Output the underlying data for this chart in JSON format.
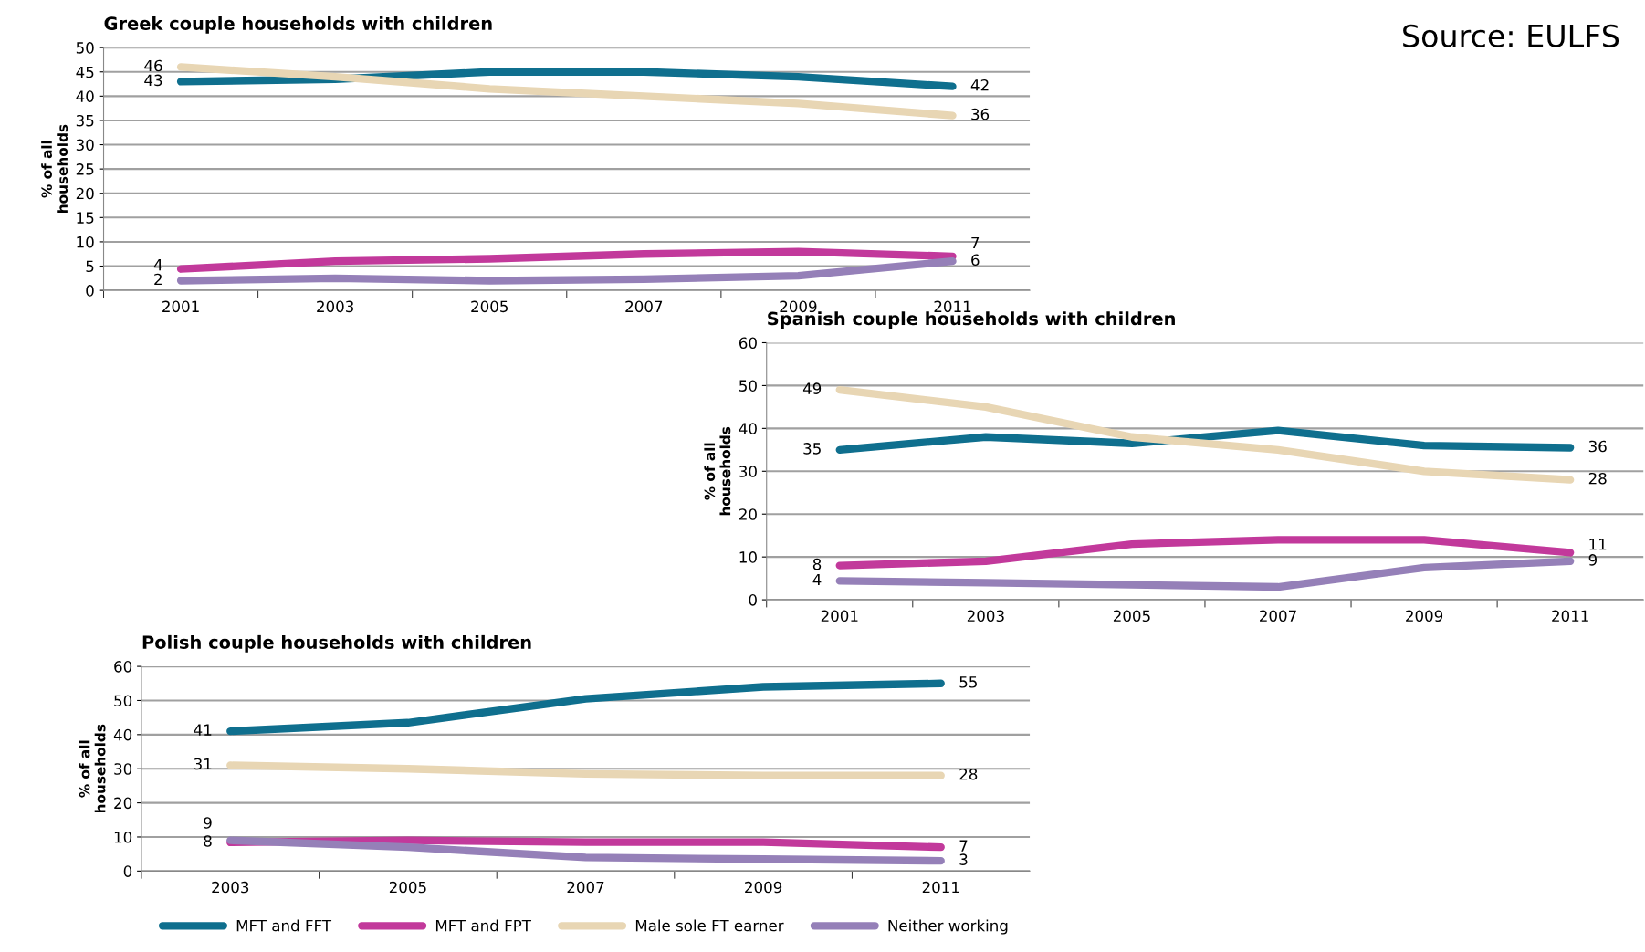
{
  "chart_data": [
    {
      "type": "line",
      "title": "Greek couple households with children",
      "ylabel": "% of all\nhouseholds",
      "categories": [
        "2001",
        "2003",
        "2005",
        "2007",
        "2009",
        "2011"
      ],
      "ylim": [
        0,
        50
      ],
      "yticks": [
        0,
        5,
        10,
        15,
        20,
        25,
        30,
        35,
        40,
        45,
        50
      ],
      "grid": "y",
      "marker": "none",
      "line_style": "solid",
      "annotations": [
        "Source: EULFS"
      ],
      "series": [
        {
          "color": "#0f6f8e",
          "values": [
            43,
            43.5,
            45,
            45,
            44,
            42
          ],
          "value_labels": [
            "43",
            null,
            null,
            null,
            null,
            "42"
          ]
        },
        {
          "color": "#c2399b",
          "values": [
            4.4,
            6,
            6.5,
            7.5,
            8,
            7
          ],
          "value_labels": [
            "4",
            null,
            null,
            null,
            null,
            "7"
          ]
        },
        {
          "color": "#e8d6b4",
          "values": [
            46,
            44,
            41.5,
            40,
            38.5,
            36
          ],
          "value_labels": [
            "46",
            null,
            null,
            null,
            null,
            "36"
          ]
        },
        {
          "color": "#9580b8",
          "values": [
            2,
            2.5,
            2,
            2.3,
            3,
            6
          ],
          "value_labels": [
            "2",
            null,
            null,
            null,
            null,
            "6"
          ]
        }
      ]
    },
    {
      "type": "line",
      "title": "Spanish couple households with children",
      "ylabel": "% of all\nhouseholds",
      "categories": [
        "2001",
        "2003",
        "2005",
        "2007",
        "2009",
        "2011"
      ],
      "ylim": [
        0,
        60
      ],
      "yticks": [
        0,
        10,
        20,
        30,
        40,
        50,
        60
      ],
      "grid": "y",
      "marker": "none",
      "line_style": "solid",
      "series": [
        {
          "color": "#0f6f8e",
          "values": [
            35,
            38,
            36.5,
            39.5,
            36,
            35.5
          ],
          "value_labels": [
            "35",
            null,
            null,
            null,
            null,
            "36"
          ]
        },
        {
          "color": "#c2399b",
          "values": [
            8,
            9,
            13,
            14,
            14,
            11
          ],
          "value_labels": [
            "8",
            null,
            null,
            null,
            null,
            "11"
          ]
        },
        {
          "color": "#e8d6b4",
          "values": [
            49,
            45,
            38,
            35,
            30,
            28
          ],
          "value_labels": [
            "49",
            null,
            null,
            null,
            null,
            "28"
          ]
        },
        {
          "color": "#9580b8",
          "values": [
            4.4,
            4,
            3.5,
            3,
            7.5,
            9
          ],
          "value_labels": [
            "4",
            null,
            null,
            null,
            null,
            "9"
          ]
        }
      ]
    },
    {
      "type": "line",
      "title": "Polish couple households with children",
      "ylabel": "% of all\nhouseholds",
      "categories": [
        "2003",
        "2005",
        "2007",
        "2009",
        "2011"
      ],
      "ylim": [
        0,
        60
      ],
      "yticks": [
        0,
        10,
        20,
        30,
        40,
        50,
        60
      ],
      "grid": "y",
      "marker": "none",
      "line_style": "solid",
      "legend": "bottom",
      "series": [
        {
          "name": "MFT and FFT",
          "color": "#0f6f8e",
          "values": [
            41,
            43.5,
            50.5,
            54,
            55
          ],
          "value_labels": [
            "41",
            null,
            null,
            null,
            "55"
          ]
        },
        {
          "name": "MFT and FPT",
          "color": "#c2399b",
          "values": [
            8.4,
            9,
            8.5,
            8.5,
            7
          ],
          "value_labels": [
            "8",
            null,
            null,
            null,
            "7"
          ]
        },
        {
          "name": "Male sole FT earner",
          "color": "#e8d6b4",
          "values": [
            31,
            30,
            28.5,
            28,
            28
          ],
          "value_labels": [
            "31",
            null,
            null,
            null,
            "28"
          ]
        },
        {
          "name": "Neither working",
          "color": "#9580b8",
          "values": [
            9,
            7,
            4,
            3.5,
            3
          ],
          "value_labels": [
            "9",
            null,
            null,
            null,
            "3"
          ]
        }
      ]
    }
  ]
}
